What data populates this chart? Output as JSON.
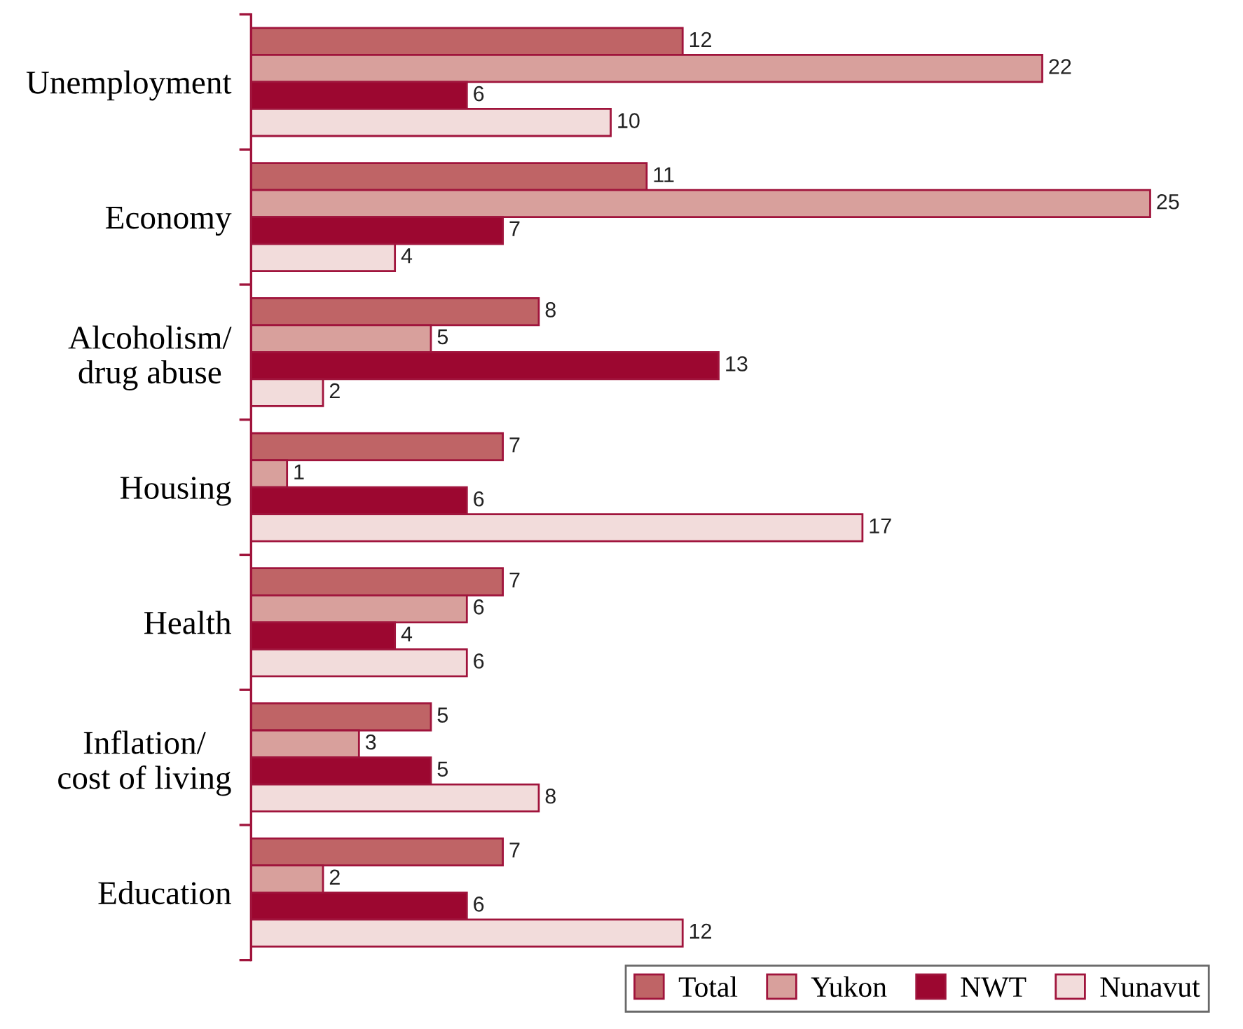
{
  "chart_data": {
    "type": "bar",
    "orientation": "horizontal",
    "categories": [
      "Unemployment",
      "Economy",
      "Alcoholism/\ndrug abuse",
      "Housing",
      "Health",
      "Inflation/\ncost of living",
      "Education"
    ],
    "series": [
      {
        "name": "Total",
        "color": "#bf6466",
        "values": [
          12,
          11,
          8,
          7,
          7,
          5,
          7
        ]
      },
      {
        "name": "Yukon",
        "color": "#d8a09c",
        "values": [
          22,
          25,
          5,
          1,
          6,
          3,
          2
        ]
      },
      {
        "name": "NWT",
        "color": "#9c0730",
        "values": [
          6,
          7,
          13,
          6,
          4,
          5,
          6
        ]
      },
      {
        "name": "Nunavut",
        "color": "#f2dcdb",
        "values": [
          10,
          4,
          2,
          17,
          6,
          8,
          12
        ]
      }
    ],
    "data_labels": true,
    "legend": "bottom right",
    "grid": false
  }
}
